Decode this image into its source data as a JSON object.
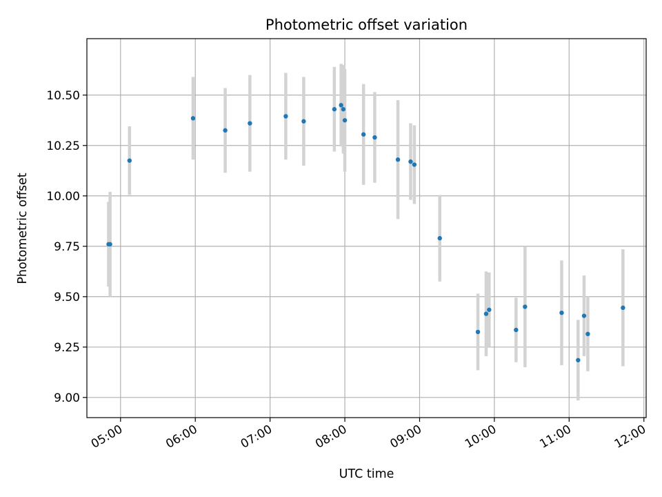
{
  "chart_data": {
    "type": "scatter",
    "title": "Photometric offset variation",
    "xlabel": "UTC time",
    "ylabel": "Photometric offset",
    "x_unit": "hours UTC",
    "xlim": [
      4.55,
      12.03
    ],
    "ylim": [
      8.9,
      10.78
    ],
    "grid": true,
    "x_ticks": [
      {
        "value": 5,
        "label": "05:00"
      },
      {
        "value": 6,
        "label": "06:00"
      },
      {
        "value": 7,
        "label": "07:00"
      },
      {
        "value": 8,
        "label": "08:00"
      },
      {
        "value": 9,
        "label": "09:00"
      },
      {
        "value": 10,
        "label": "10:00"
      },
      {
        "value": 11,
        "label": "11:00"
      },
      {
        "value": 12,
        "label": "12:00"
      }
    ],
    "y_ticks": [
      {
        "value": 9.0,
        "label": "9.00"
      },
      {
        "value": 9.25,
        "label": "9.25"
      },
      {
        "value": 9.5,
        "label": "9.50"
      },
      {
        "value": 9.75,
        "label": "9.75"
      },
      {
        "value": 10.0,
        "label": "10.00"
      },
      {
        "value": 10.25,
        "label": "10.25"
      },
      {
        "value": 10.5,
        "label": "10.50"
      }
    ],
    "point_color": "#1f77b4",
    "errorbar_color": "#d3d3d3",
    "grid_color": "#b0b0b0",
    "series": [
      {
        "points": [
          {
            "x": 4.84,
            "y": 9.76,
            "yerr": 0.21
          },
          {
            "x": 4.86,
            "y": 9.76,
            "yerr": 0.26
          },
          {
            "x": 5.12,
            "y": 10.175,
            "yerr": 0.17
          },
          {
            "x": 5.97,
            "y": 10.385,
            "yerr": 0.205
          },
          {
            "x": 6.4,
            "y": 10.325,
            "yerr": 0.21
          },
          {
            "x": 6.73,
            "y": 10.36,
            "yerr": 0.24
          },
          {
            "x": 7.21,
            "y": 10.395,
            "yerr": 0.215
          },
          {
            "x": 7.45,
            "y": 10.37,
            "yerr": 0.22
          },
          {
            "x": 7.86,
            "y": 10.43,
            "yerr": 0.21
          },
          {
            "x": 7.95,
            "y": 10.45,
            "yerr": 0.205
          },
          {
            "x": 7.98,
            "y": 10.43,
            "yerr": 0.22
          },
          {
            "x": 8.0,
            "y": 10.375,
            "yerr": 0.255
          },
          {
            "x": 8.25,
            "y": 10.305,
            "yerr": 0.25
          },
          {
            "x": 8.4,
            "y": 10.29,
            "yerr": 0.225
          },
          {
            "x": 8.71,
            "y": 10.18,
            "yerr": 0.295
          },
          {
            "x": 8.88,
            "y": 10.17,
            "yerr": 0.19
          },
          {
            "x": 8.93,
            "y": 10.155,
            "yerr": 0.195
          },
          {
            "x": 9.27,
            "y": 9.79,
            "yerr": 0.215
          },
          {
            "x": 9.78,
            "y": 9.325,
            "yerr": 0.19
          },
          {
            "x": 9.89,
            "y": 9.415,
            "yerr": 0.21
          },
          {
            "x": 9.93,
            "y": 9.435,
            "yerr": 0.185
          },
          {
            "x": 10.29,
            "y": 9.335,
            "yerr": 0.16
          },
          {
            "x": 10.41,
            "y": 9.45,
            "yerr": 0.3
          },
          {
            "x": 10.9,
            "y": 9.42,
            "yerr": 0.26
          },
          {
            "x": 11.12,
            "y": 9.185,
            "yerr": 0.2
          },
          {
            "x": 11.2,
            "y": 9.405,
            "yerr": 0.2
          },
          {
            "x": 11.25,
            "y": 9.315,
            "yerr": 0.185
          },
          {
            "x": 11.72,
            "y": 9.445,
            "yerr": 0.29
          }
        ]
      }
    ]
  }
}
